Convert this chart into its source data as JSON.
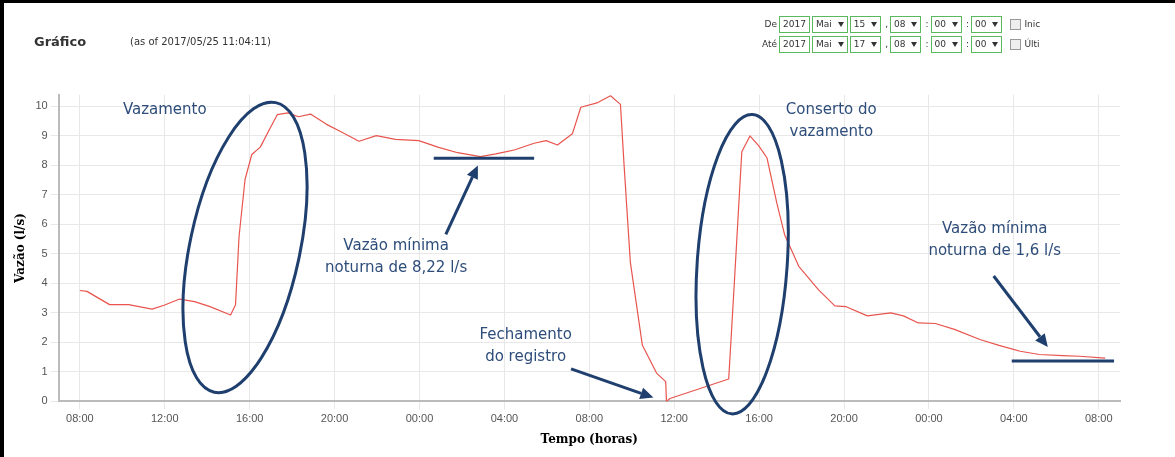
{
  "chart_data": {
    "type": "line",
    "title": "Gráfico",
    "subtitle": "(as of 2017/05/25 11:04:11)",
    "xlabel": "Tempo (horas)",
    "ylabel": "Vazão (l/s)",
    "x": [
      "2017-05-15T08:00",
      "2017-05-15T08:20",
      "2017-05-15T09:24",
      "2017-05-15T10:18",
      "2017-05-15T11:24",
      "2017-05-15T11:58",
      "2017-05-15T12:42",
      "2017-05-15T13:24",
      "2017-05-15T14:06",
      "2017-05-15T15:06",
      "2017-05-15T15:20",
      "2017-05-15T15:30",
      "2017-05-15T15:47",
      "2017-05-15T16:06",
      "2017-05-15T16:30",
      "2017-05-15T16:58",
      "2017-05-15T17:18",
      "2017-05-15T17:48",
      "2017-05-15T18:18",
      "2017-05-15T18:52",
      "2017-05-15T19:36",
      "2017-05-15T20:18",
      "2017-05-15T21:09",
      "2017-05-15T21:58",
      "2017-05-15T22:52",
      "2017-05-15T23:58",
      "2017-05-16T00:52",
      "2017-05-16T01:48",
      "2017-05-16T02:52",
      "2017-05-16T03:36",
      "2017-05-16T04:30",
      "2017-05-16T05:24",
      "2017-05-16T05:58",
      "2017-05-16T06:30",
      "2017-05-16T07:12",
      "2017-05-16T07:36",
      "2017-05-16T08:24",
      "2017-05-16T09:00",
      "2017-05-16T09:28",
      "2017-05-16T09:38",
      "2017-05-16T09:56",
      "2017-05-16T10:30",
      "2017-05-16T11:10",
      "2017-05-16T11:36",
      "2017-05-16T11:38",
      "2017-05-16T11:48",
      "2017-05-16T14:34",
      "2017-05-16T14:50",
      "2017-05-16T15:11",
      "2017-05-16T15:34",
      "2017-05-16T15:59",
      "2017-05-16T16:22",
      "2017-05-16T16:50",
      "2017-05-16T17:12",
      "2017-05-16T17:52",
      "2017-05-16T18:48",
      "2017-05-16T19:34",
      "2017-05-16T20:06",
      "2017-05-16T21:06",
      "2017-05-16T22:12",
      "2017-05-16T22:48",
      "2017-05-16T23:30",
      "2017-05-17T00:18",
      "2017-05-17T01:12",
      "2017-05-17T02:24",
      "2017-05-17T03:18",
      "2017-05-17T04:18",
      "2017-05-17T05:12",
      "2017-05-17T06:18",
      "2017-05-17T07:06",
      "2017-05-17T08:18"
    ],
    "series": [
      {
        "color": "#e8554e",
        "values": [
          3.76,
          3.73,
          3.28,
          3.28,
          3.13,
          3.26,
          3.47,
          3.38,
          3.22,
          2.93,
          3.28,
          5.6,
          7.53,
          8.37,
          8.62,
          9.27,
          9.72,
          9.78,
          9.65,
          9.74,
          9.4,
          9.14,
          8.82,
          9.01,
          8.88,
          8.84,
          8.62,
          8.43,
          8.3,
          8.39,
          8.53,
          8.75,
          8.84,
          8.69,
          9.07,
          9.97,
          10.13,
          10.36,
          10.07,
          8.06,
          4.71,
          1.9,
          0.96,
          0.67,
          0,
          0.1,
          0.76,
          4.04,
          8.46,
          9,
          8.66,
          8.26,
          6.72,
          5.65,
          4.58,
          3.78,
          3.24,
          3.21,
          2.9,
          3,
          2.9,
          2.66,
          2.64,
          2.44,
          2.1,
          1.9,
          1.7,
          1.59,
          1.55,
          1.53,
          1.47
        ]
      }
    ],
    "xlim": [
      "2017-05-15T07:00",
      "2017-05-17T09:00"
    ],
    "xticks": [
      {
        "value": "2017-05-15T08:00",
        "label": "08:00"
      },
      {
        "value": "2017-05-15T12:00",
        "label": "12:00"
      },
      {
        "value": "2017-05-15T16:00",
        "label": "16:00"
      },
      {
        "value": "2017-05-15T20:00",
        "label": "20:00"
      },
      {
        "value": "2017-05-16T00:00",
        "label": "00:00"
      },
      {
        "value": "2017-05-16T04:00",
        "label": "04:00"
      },
      {
        "value": "2017-05-16T08:00",
        "label": "08:00"
      },
      {
        "value": "2017-05-16T12:00",
        "label": "12:00"
      },
      {
        "value": "2017-05-16T16:00",
        "label": "16:00"
      },
      {
        "value": "2017-05-16T20:00",
        "label": "20:00"
      },
      {
        "value": "2017-05-17T00:00",
        "label": "00:00"
      },
      {
        "value": "2017-05-17T04:00",
        "label": "04:00"
      },
      {
        "value": "2017-05-17T08:00",
        "label": "08:00"
      }
    ],
    "ylim": [
      0,
      10.4
    ],
    "yticks": [
      0,
      1,
      2,
      3,
      4,
      5,
      6,
      7,
      8,
      9,
      10
    ],
    "grid": true,
    "marker": "none",
    "line_style": "solid",
    "annotations": [
      "Vazamento",
      "Vazão mínima\nnoturna de 8,22 l/s",
      "Fechamento\ndo registro",
      "Conserto do\nvazamento",
      "Vazão mínima\nnoturna de 1,6 l/s",
      "De",
      "2017",
      "Mai",
      "15",
      ",",
      "08",
      ":",
      "00",
      ":",
      "00",
      "Inic",
      "Até",
      "2017",
      "Mai",
      "17",
      ",",
      "08",
      ":",
      "00",
      ":",
      "00",
      "Últi"
    ]
  }
}
